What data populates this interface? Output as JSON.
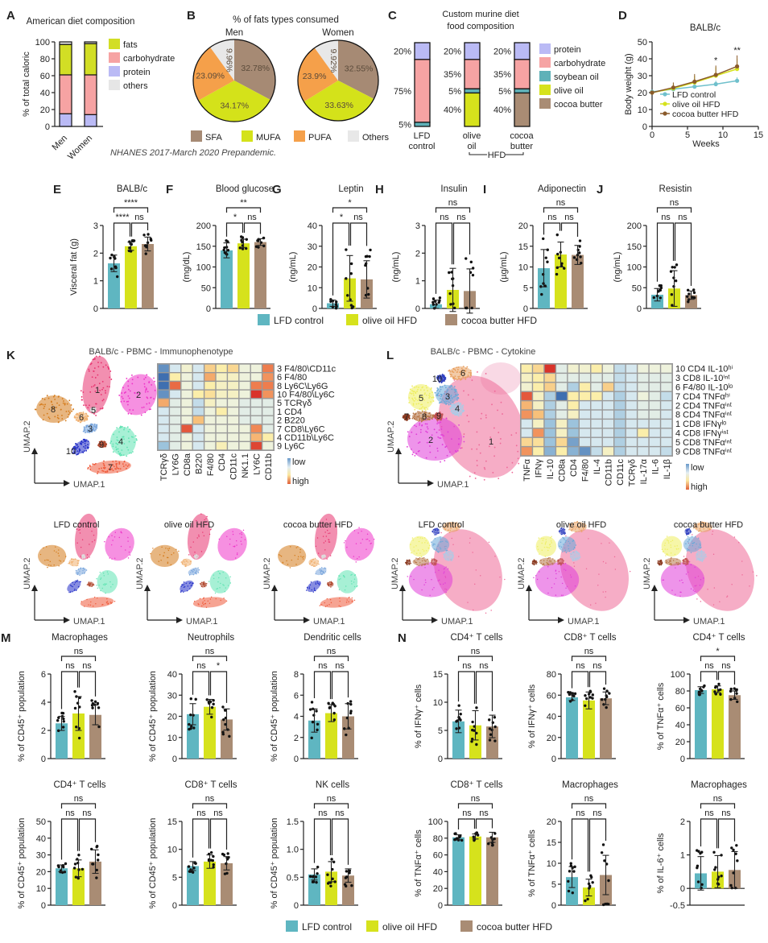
{
  "groups": {
    "names": [
      "LFD control",
      "olive oil HFD",
      "cocoa butter HFD"
    ],
    "colors": [
      "#5fb6c1",
      "#d6e21c",
      "#a98c74"
    ]
  },
  "chart_data": [
    {
      "panel": "A",
      "type": "bar",
      "stacked": true,
      "title": "American diet composition",
      "ylabel": "% of total caloric",
      "categories": [
        "Men",
        "Women"
      ],
      "ylim": [
        0,
        100
      ],
      "yticks": [
        0,
        20,
        40,
        60,
        80,
        100
      ],
      "series": [
        {
          "name": "fats",
          "values": [
            36,
            37
          ],
          "color": "#d2de25"
        },
        {
          "name": "carbohydrate",
          "values": [
            46,
            47
          ],
          "color": "#f6a3a3"
        },
        {
          "name": "protein",
          "values": [
            15,
            14
          ],
          "color": "#babaf5"
        },
        {
          "name": "others",
          "values": [
            3,
            2
          ],
          "color": "#e6e6e6"
        }
      ],
      "note": "NHANES 2017-March 2020 Prepandemic."
    },
    {
      "panel": "B",
      "type": "pie",
      "title": "% of fats types consumed",
      "categories": [
        "SFA",
        "MUFA",
        "PUFA",
        "Others"
      ],
      "colors": [
        "#a68a74",
        "#d4e21a",
        "#f5a04a",
        "#e8e8e8"
      ],
      "pies": [
        {
          "name": "Men",
          "values": [
            32.78,
            34.17,
            23.09,
            9.96
          ]
        },
        {
          "name": "Women",
          "values": [
            32.55,
            33.63,
            23.9,
            9.92
          ]
        }
      ]
    },
    {
      "panel": "C",
      "type": "bar",
      "stacked": true,
      "title_lines": [
        "Custom murine diet",
        "food composition"
      ],
      "categories": [
        [
          "LFD",
          "control"
        ],
        [
          "olive",
          "oil"
        ],
        [
          "cocoa",
          "butter"
        ]
      ],
      "group_label": "HFD",
      "series": [
        {
          "name": "protein",
          "values": [
            20,
            20,
            20
          ],
          "color": "#babaf5"
        },
        {
          "name": "carbohydrate",
          "values": [
            75,
            35,
            35
          ],
          "color": "#f6a3a3"
        },
        {
          "name": "soybean oil",
          "values": [
            5,
            5,
            5
          ],
          "color": "#5fb1b8"
        },
        {
          "name": "olive oil",
          "values": [
            0,
            40,
            0
          ],
          "color": "#d6e21c"
        },
        {
          "name": "cocoa butter",
          "values": [
            0,
            0,
            40
          ],
          "color": "#a98c74"
        }
      ]
    },
    {
      "panel": "D",
      "type": "line",
      "title": "BALB/c",
      "xlabel": "Weeks",
      "ylabel": "Body weight (g)",
      "xlim": [
        0,
        15
      ],
      "ylim": [
        0,
        50
      ],
      "xticks": [
        0,
        5,
        10,
        15
      ],
      "yticks": [
        0,
        10,
        20,
        30,
        40,
        50
      ],
      "x": [
        0,
        3,
        6,
        9,
        12
      ],
      "series": [
        {
          "name": "LFD control",
          "values": [
            20.5,
            22,
            23.5,
            25,
            27
          ],
          "sd": [
            1,
            2,
            2,
            2,
            2
          ]
        },
        {
          "name": "olive oil HFD",
          "values": [
            20,
            22.5,
            26,
            30,
            34
          ],
          "sd": [
            1,
            3,
            4,
            5,
            6
          ]
        },
        {
          "name": "cocoa butter HFD",
          "values": [
            20,
            23,
            26.5,
            30.5,
            35.5
          ],
          "sd": [
            1,
            3,
            4.5,
            5.5,
            6.5
          ]
        }
      ],
      "annotations": [
        {
          "x": 9,
          "text": "*"
        },
        {
          "x": 12,
          "text": "**"
        }
      ]
    },
    {
      "panel": "E",
      "type": "bar",
      "title": "BALB/c",
      "ylabel": "Visceral fat (g)",
      "ylim": [
        0,
        3
      ],
      "yticks": [
        "0",
        "1",
        "2",
        "3"
      ],
      "means": [
        1.63,
        2.25,
        2.33
      ],
      "sd": [
        0.3,
        0.15,
        0.25
      ],
      "significance": {
        "top": "****",
        "left": "****",
        "right": "ns"
      }
    },
    {
      "panel": "F",
      "type": "bar",
      "title": "Blood glucose",
      "ylabel": "(mg/dL)",
      "ylim": [
        0,
        200
      ],
      "yticks": [
        "0",
        "50",
        "100",
        "150",
        "200"
      ],
      "means": [
        140,
        157,
        160
      ],
      "sd": [
        18,
        10,
        8
      ],
      "significance": {
        "top": "**",
        "left": "*",
        "right": "ns"
      }
    },
    {
      "panel": "G",
      "type": "bar",
      "title": "Leptin",
      "ylabel": "(ng/mL)",
      "ylim": [
        0,
        40
      ],
      "yticks": [
        "0",
        "10",
        "20",
        "30",
        "40"
      ],
      "means": [
        2.5,
        14.5,
        14
      ],
      "sd": [
        1.5,
        11,
        9
      ],
      "significance": {
        "top": "*",
        "left": "*",
        "right": "ns"
      }
    },
    {
      "panel": "H",
      "type": "bar",
      "title": "Insulin",
      "ylabel": "(ng/mL)",
      "ylim": [
        0,
        3
      ],
      "yticks": [
        "0",
        "1",
        "2",
        "3"
      ],
      "means": [
        0.15,
        0.67,
        0.63
      ],
      "sd": [
        0.15,
        0.78,
        0.8
      ],
      "significance": {
        "top": "ns",
        "left": "ns",
        "right": "ns"
      }
    },
    {
      "panel": "I",
      "type": "bar",
      "title": "Adiponectin",
      "ylabel": "(µg/mL)",
      "ylim": [
        0,
        20
      ],
      "yticks": [
        "0",
        "5",
        "10",
        "15",
        "20"
      ],
      "means": [
        9.7,
        13,
        12.9
      ],
      "sd": [
        4.5,
        3,
        2.3
      ],
      "significance": {
        "top": "ns",
        "left": "ns",
        "right": "ns"
      }
    },
    {
      "panel": "J",
      "type": "bar",
      "title": "Resistin",
      "ylabel": "(ng/mL)",
      "ylim": [
        0,
        200
      ],
      "yticks": [
        "0",
        "50",
        "100",
        "150",
        "200"
      ],
      "means": [
        33,
        48,
        32
      ],
      "sd": [
        15,
        43,
        10
      ],
      "significance": {
        "top": "ns",
        "left": "ns",
        "right": "ns"
      }
    },
    {
      "panel": "K",
      "type": "heatmap",
      "title": "BALB/c - PBMC - Immunophenotype",
      "cols": [
        "TCRγδ",
        "LY6G",
        "CD8a",
        "B220",
        "F4/80",
        "CD4",
        "CD11c",
        "NK1.1",
        "LY6C",
        "CD11b"
      ],
      "rows": [
        "3 F4/80\\CD11c",
        "6 F4/80",
        "8 Ly6C\\Ly6G",
        "10 F4/80\\Ly6C",
        "5 TCRγδ",
        "1 CD4",
        "2 B220",
        "7 CD8\\Ly6C",
        "4 CD11b\\Ly6C",
        "9 Ly6C"
      ],
      "values": [
        [
          -0.8,
          -0.2,
          0.05,
          -0.2,
          0.4,
          0.2,
          0.35,
          0,
          0,
          0.8
        ],
        [
          -1,
          0.2,
          0,
          -0.2,
          0.6,
          0.1,
          0.1,
          0,
          0,
          0.7
        ],
        [
          -1,
          0.85,
          0,
          -0.2,
          0.2,
          0.1,
          0.1,
          0,
          0.8,
          0.8
        ],
        [
          -0.8,
          -0.2,
          0,
          0.2,
          0.3,
          0.1,
          0.1,
          0,
          1,
          0.7
        ],
        [
          0.6,
          -0.1,
          0,
          -0.3,
          0.1,
          0,
          0,
          -0.1,
          -0.1,
          -0.1
        ],
        [
          -0.2,
          -0.1,
          0,
          -0.3,
          0,
          0.2,
          0,
          -0.1,
          -0.1,
          -0.1
        ],
        [
          -0.2,
          -0.1,
          0,
          0.5,
          0,
          0,
          0,
          -0.1,
          -0.1,
          -0.1
        ],
        [
          -0.2,
          -0.1,
          0.9,
          -0.2,
          0,
          0,
          0,
          0,
          0.75,
          -0.1
        ],
        [
          -0.2,
          -0.1,
          0,
          -0.2,
          0,
          0,
          0,
          0,
          0.55,
          0.2
        ],
        [
          -0.5,
          -0.1,
          0,
          -0.2,
          0,
          0.15,
          0,
          0,
          0.95,
          0
        ]
      ],
      "scale_labels": [
        "low",
        "high"
      ],
      "umap": {
        "clusters": [
          "1",
          "2",
          "3",
          "4",
          "5",
          "6",
          "7",
          "8",
          "9",
          "10"
        ],
        "axes": [
          "UMAP.1",
          "UMAP.2"
        ]
      },
      "conditions": [
        "LFD control",
        "olive oil HFD",
        "cocoa butter HFD"
      ]
    },
    {
      "panel": "L",
      "type": "heatmap",
      "title": "BALB/c - PBMC - Cytokine",
      "cols": [
        "TNFα",
        "IFNγ",
        "IL-10",
        "CD8a",
        "CD4",
        "F4/80",
        "IL-4",
        "CD11b",
        "CD11c",
        "TCRγδ",
        "IL-17α",
        "IL-6",
        "IL-1β"
      ],
      "rows": [
        "10 CD4 IL-10ʰⁱ",
        "3 CD8 IL-10ⁱⁿᵗ",
        "6 F4/80 IL-10ˡᵒ",
        "7 CD4 TNFαʰⁱ",
        "2 CD4 TNFαⁱⁿᵗ",
        "8 CD4 TNFαⁱⁿᵗ",
        "1 CD8 IFNγˡᵒ",
        "4 CD8 IFNγⁱⁿᵗ",
        "5 CD8 TNFαⁱⁿᵗ",
        "9 CD8 TNFαⁱⁿᵗ"
      ],
      "values": [
        [
          0.2,
          0.35,
          1,
          -0.1,
          0.05,
          0.05,
          0.2,
          0,
          -0.3,
          -0.2,
          0,
          0,
          0
        ],
        [
          0.1,
          0.2,
          0.35,
          -0.1,
          -0.1,
          -0.1,
          -0.1,
          -0.1,
          -0.3,
          -0.2,
          -0.1,
          -0.1,
          -0.1
        ],
        [
          0.05,
          0.2,
          0.4,
          -0.1,
          -0.4,
          0.2,
          -0.1,
          0.4,
          -0.3,
          -0.2,
          -0.1,
          -0.1,
          -0.1
        ],
        [
          0.9,
          0.1,
          -0.4,
          -1,
          0.2,
          0.2,
          0.2,
          -0.2,
          -0.4,
          -0.2,
          0,
          -0.1,
          -0.3
        ],
        [
          0.55,
          0.1,
          -0.4,
          -0.1,
          0.2,
          -0.2,
          -0.2,
          -0.2,
          -0.4,
          -0.2,
          -0.1,
          -0.1,
          -0.2
        ],
        [
          0.7,
          0.5,
          -0.4,
          -0.1,
          0.1,
          -0.2,
          -0.2,
          -0.2,
          -0.4,
          -0.2,
          -0.1,
          -0.1,
          -0.2
        ],
        [
          -0.2,
          0.1,
          -0.5,
          0.1,
          -0.5,
          -0.2,
          -0.2,
          -0.2,
          -0.4,
          -0.2,
          -0.2,
          -0.2,
          -0.2
        ],
        [
          -0.2,
          0.7,
          -0.5,
          0.1,
          -0.5,
          -0.2,
          -0.2,
          -0.2,
          -0.4,
          -0.2,
          0.2,
          -0.2,
          -0.2
        ],
        [
          0.35,
          0.3,
          -0.5,
          0.35,
          -0.7,
          -0.2,
          -0.2,
          -0.2,
          -0.4,
          -0.2,
          -0.2,
          -0.2,
          -0.2
        ],
        [
          0.7,
          0.2,
          -0.6,
          0.2,
          -0.6,
          -0.8,
          -0.3,
          0.1,
          -0.4,
          -0.2,
          -0.2,
          -0.2,
          -0.3
        ]
      ],
      "scale_labels": [
        "low",
        "high"
      ],
      "umap": {
        "clusters": [
          "1",
          "2",
          "3",
          "4",
          "5",
          "6",
          "7",
          "8",
          "9",
          "10"
        ],
        "axes": [
          "UMAP.1",
          "UMAP.2"
        ]
      },
      "conditions": [
        "LFD control",
        "olive oil HFD",
        "cocoa butter HFD"
      ]
    },
    {
      "panel": "M",
      "type": "bar",
      "title": "Macrophages",
      "ylabel": "% of CD45⁺ population",
      "ylim": [
        0,
        6
      ],
      "yticks": [
        "0",
        "2",
        "4",
        "6"
      ],
      "means": [
        2.5,
        3.2,
        3.1
      ],
      "sd": [
        0.5,
        1.2,
        0.7
      ],
      "significance": {
        "top": "ns",
        "left": "ns",
        "right": "ns"
      }
    },
    {
      "panel": "",
      "type": "bar",
      "title": "Neutrophils",
      "ylabel": "% of CD45⁺ population",
      "ylim": [
        0,
        40
      ],
      "yticks": [
        "0",
        "10",
        "20",
        "30",
        "40"
      ],
      "means": [
        21,
        24.5,
        18.5
      ],
      "sd": [
        5,
        3.5,
        5
      ],
      "significance": {
        "top": "ns",
        "left": "ns",
        "right": "*"
      }
    },
    {
      "panel": "",
      "type": "bar",
      "title": "Dendritic cells",
      "ylabel": "% of CD45⁺ population",
      "ylim": [
        0,
        8
      ],
      "yticks": [
        "0",
        "2",
        "4",
        "6",
        "8"
      ],
      "means": [
        3.6,
        4.3,
        4.0
      ],
      "sd": [
        1.1,
        0.8,
        1.2
      ],
      "significance": {
        "top": "ns",
        "left": "ns",
        "right": "ns"
      }
    },
    {
      "panel": "N",
      "type": "bar",
      "title": "CD4⁺ T cells",
      "ylabel": "% of IFNγ⁺ cells",
      "ylim": [
        0,
        15
      ],
      "yticks": [
        "0",
        "5",
        "10",
        "15"
      ],
      "means": [
        6.6,
        5.9,
        5.7
      ],
      "sd": [
        2,
        2.6,
        2
      ],
      "significance": {
        "top": "ns",
        "left": "ns",
        "right": "ns"
      }
    },
    {
      "panel": "",
      "type": "bar",
      "title": "CD8⁺ T cells",
      "ylabel": "% of IFNγ⁺ cells",
      "ylim": [
        0,
        80
      ],
      "yticks": [
        "0",
        "20",
        "40",
        "60",
        "80"
      ],
      "means": [
        58,
        55,
        57
      ],
      "sd": [
        3,
        8,
        6
      ],
      "significance": {
        "top": "ns",
        "left": "ns",
        "right": "ns"
      }
    },
    {
      "panel": "",
      "type": "bar",
      "title": "CD4⁺ T cells",
      "ylabel": "% of TNFα⁺ cells",
      "ylim": [
        0,
        100
      ],
      "yticks": [
        "0",
        "20",
        "40",
        "60",
        "80",
        "100"
      ],
      "means": [
        81,
        82,
        75
      ],
      "sd": [
        4,
        4,
        5
      ],
      "significance": {
        "top": "*",
        "left": "ns",
        "right": "ns"
      }
    },
    {
      "panel": "",
      "type": "bar",
      "title": "CD4⁺ T cells",
      "ylabel": "% of CD45⁺ population",
      "ylim": [
        0,
        50
      ],
      "yticks": [
        "0",
        "10",
        "20",
        "30",
        "40",
        "50"
      ],
      "means": [
        22,
        22,
        26
      ],
      "sd": [
        2,
        5,
        7
      ],
      "significance": {
        "top": "ns",
        "left": "ns",
        "right": "ns"
      }
    },
    {
      "panel": "",
      "type": "bar",
      "title": "CD8⁺ T cells",
      "ylabel": "% of CD45⁺ population",
      "ylim": [
        0,
        15
      ],
      "yticks": [
        "0",
        "5",
        "10",
        "15"
      ],
      "means": [
        7,
        7.8,
        7.5
      ],
      "sd": [
        0.8,
        1.2,
        1.2
      ],
      "significance": {
        "top": "ns",
        "left": "ns",
        "right": "ns"
      }
    },
    {
      "panel": "",
      "type": "bar",
      "title": "NK cells",
      "ylabel": "% of CD45⁺ population",
      "ylim": [
        0,
        1.5
      ],
      "yticks": [
        "0",
        "0.5",
        "1.0",
        "1.5"
      ],
      "means": [
        0.55,
        0.6,
        0.53
      ],
      "sd": [
        0.1,
        0.18,
        0.12
      ],
      "significance": {
        "top": "ns",
        "left": "ns",
        "right": "ns"
      }
    },
    {
      "panel": "",
      "type": "bar",
      "title": "CD8⁺ T cells",
      "ylabel": "% of TNFα⁺ cells",
      "ylim": [
        0,
        100
      ],
      "yticks": [
        "0",
        "20",
        "40",
        "60",
        "80",
        "100"
      ],
      "means": [
        81,
        82,
        81
      ],
      "sd": [
        3,
        3,
        6
      ],
      "significance": {
        "top": "ns",
        "left": "ns",
        "right": "ns"
      }
    },
    {
      "panel": "",
      "type": "bar",
      "title": "Macrophages",
      "ylabel": "% of TNFα⁺ cells",
      "ylim": [
        0,
        20
      ],
      "yticks": [
        "0",
        "5",
        "10",
        "15",
        "20"
      ],
      "means": [
        6.7,
        4.2,
        7.2
      ],
      "sd": [
        2.5,
        2,
        4.7
      ],
      "significance": {
        "top": "ns",
        "left": "ns",
        "right": "ns"
      }
    },
    {
      "panel": "",
      "type": "bar",
      "title": "Macrophages",
      "ylabel": "% of IL-6⁺ cells",
      "ylim": [
        -0.5,
        2
      ],
      "yticks": [
        "-0.5",
        "0",
        "1",
        "2"
      ],
      "means": [
        0.45,
        0.5,
        0.55
      ],
      "sd": [
        0.5,
        0.48,
        0.55
      ],
      "significance": {
        "top": "ns",
        "left": "ns",
        "right": "ns"
      }
    }
  ]
}
